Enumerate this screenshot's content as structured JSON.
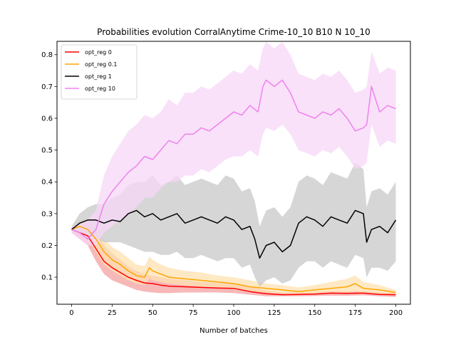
{
  "chart_data": {
    "type": "line",
    "title": "Probabilities evolution CorralAnytime Crime-10_10 B10 N 10_10",
    "xlabel": "Number of batches",
    "ylabel": "",
    "xlim": [
      -9,
      209
    ],
    "ylim": [
      0.015,
      0.842
    ],
    "xticks": [
      0,
      25,
      50,
      75,
      100,
      125,
      150,
      175,
      200
    ],
    "yticks": [
      0.1,
      0.2,
      0.3,
      0.4,
      0.5,
      0.6,
      0.7,
      0.8
    ],
    "grid": false,
    "legend_position": "top-left",
    "series": [
      {
        "name": "opt_reg 0",
        "color": "#ff0000",
        "band_color": "#f4a0a0",
        "x": [
          0,
          5,
          10,
          15,
          20,
          25,
          30,
          35,
          40,
          45,
          50,
          55,
          60,
          70,
          80,
          90,
          100,
          110,
          120,
          130,
          140,
          150,
          160,
          170,
          180,
          190,
          200
        ],
        "y": [
          0.25,
          0.24,
          0.23,
          0.19,
          0.15,
          0.13,
          0.115,
          0.1,
          0.09,
          0.082,
          0.08,
          0.075,
          0.072,
          0.07,
          0.068,
          0.066,
          0.065,
          0.055,
          0.048,
          0.045,
          0.046,
          0.047,
          0.05,
          0.049,
          0.05,
          0.046,
          0.045
        ],
        "lower": [
          0.24,
          0.22,
          0.2,
          0.15,
          0.11,
          0.09,
          0.08,
          0.07,
          0.06,
          0.055,
          0.052,
          0.05,
          0.05,
          0.052,
          0.052,
          0.052,
          0.05,
          0.045,
          0.04,
          0.04,
          0.04,
          0.041,
          0.042,
          0.042,
          0.043,
          0.04,
          0.038
        ],
        "upper": [
          0.26,
          0.26,
          0.27,
          0.24,
          0.2,
          0.175,
          0.155,
          0.135,
          0.12,
          0.11,
          0.105,
          0.1,
          0.095,
          0.09,
          0.085,
          0.082,
          0.08,
          0.07,
          0.058,
          0.052,
          0.052,
          0.053,
          0.057,
          0.056,
          0.057,
          0.052,
          0.05
        ]
      },
      {
        "name": "opt_reg 0.1",
        "color": "#ffa500",
        "band_color": "#fde1b0",
        "x": [
          0,
          5,
          10,
          15,
          20,
          25,
          30,
          35,
          40,
          45,
          48,
          50,
          55,
          60,
          70,
          80,
          90,
          100,
          110,
          120,
          130,
          140,
          150,
          160,
          170,
          175,
          180,
          190,
          200
        ],
        "y": [
          0.25,
          0.26,
          0.25,
          0.22,
          0.18,
          0.155,
          0.14,
          0.12,
          0.105,
          0.1,
          0.13,
          0.12,
          0.11,
          0.1,
          0.095,
          0.09,
          0.085,
          0.08,
          0.07,
          0.065,
          0.06,
          0.055,
          0.06,
          0.065,
          0.07,
          0.08,
          0.065,
          0.06,
          0.052
        ],
        "lower": [
          0.24,
          0.24,
          0.22,
          0.18,
          0.14,
          0.12,
          0.105,
          0.09,
          0.08,
          0.075,
          0.095,
          0.09,
          0.085,
          0.08,
          0.075,
          0.07,
          0.068,
          0.062,
          0.055,
          0.052,
          0.048,
          0.045,
          0.048,
          0.05,
          0.052,
          0.055,
          0.05,
          0.048,
          0.045
        ],
        "upper": [
          0.26,
          0.28,
          0.28,
          0.26,
          0.22,
          0.195,
          0.18,
          0.16,
          0.14,
          0.135,
          0.165,
          0.155,
          0.14,
          0.13,
          0.12,
          0.115,
          0.105,
          0.1,
          0.09,
          0.08,
          0.075,
          0.068,
          0.075,
          0.085,
          0.095,
          0.105,
          0.085,
          0.075,
          0.06
        ]
      },
      {
        "name": "opt_reg 1",
        "color": "#000000",
        "band_color": "#c8c8c8",
        "x": [
          0,
          5,
          10,
          15,
          20,
          25,
          30,
          35,
          40,
          45,
          50,
          55,
          60,
          65,
          70,
          75,
          80,
          85,
          90,
          95,
          100,
          105,
          110,
          113,
          116,
          120,
          125,
          130,
          135,
          140,
          145,
          150,
          155,
          160,
          165,
          170,
          175,
          180,
          182,
          185,
          190,
          195,
          200
        ],
        "y": [
          0.25,
          0.27,
          0.28,
          0.28,
          0.27,
          0.28,
          0.275,
          0.3,
          0.31,
          0.29,
          0.3,
          0.28,
          0.29,
          0.3,
          0.27,
          0.28,
          0.29,
          0.28,
          0.27,
          0.29,
          0.28,
          0.25,
          0.26,
          0.22,
          0.16,
          0.2,
          0.21,
          0.18,
          0.2,
          0.27,
          0.29,
          0.28,
          0.26,
          0.29,
          0.28,
          0.27,
          0.31,
          0.3,
          0.21,
          0.25,
          0.26,
          0.24,
          0.28
        ],
        "lower": [
          0.24,
          0.24,
          0.23,
          0.22,
          0.21,
          0.21,
          0.21,
          0.2,
          0.19,
          0.18,
          0.18,
          0.17,
          0.17,
          0.18,
          0.16,
          0.16,
          0.17,
          0.16,
          0.15,
          0.16,
          0.16,
          0.13,
          0.14,
          0.1,
          0.07,
          0.09,
          0.1,
          0.08,
          0.09,
          0.13,
          0.15,
          0.15,
          0.13,
          0.15,
          0.14,
          0.13,
          0.17,
          0.16,
          0.1,
          0.13,
          0.13,
          0.12,
          0.15
        ],
        "upper": [
          0.26,
          0.3,
          0.32,
          0.33,
          0.33,
          0.35,
          0.36,
          0.39,
          0.4,
          0.4,
          0.42,
          0.39,
          0.4,
          0.42,
          0.39,
          0.4,
          0.41,
          0.4,
          0.39,
          0.42,
          0.41,
          0.37,
          0.38,
          0.34,
          0.26,
          0.31,
          0.32,
          0.29,
          0.32,
          0.4,
          0.42,
          0.41,
          0.39,
          0.43,
          0.42,
          0.41,
          0.46,
          0.44,
          0.32,
          0.37,
          0.38,
          0.36,
          0.4
        ]
      },
      {
        "name": "opt_reg 10",
        "color": "#ee82ee",
        "band_color": "#f7d7f7",
        "x": [
          0,
          5,
          10,
          15,
          20,
          25,
          30,
          35,
          40,
          45,
          50,
          55,
          60,
          65,
          70,
          75,
          80,
          85,
          90,
          95,
          100,
          105,
          110,
          115,
          118,
          120,
          125,
          130,
          135,
          140,
          145,
          150,
          155,
          160,
          165,
          170,
          175,
          180,
          182,
          185,
          190,
          195,
          200
        ],
        "y": [
          0.25,
          0.24,
          0.22,
          0.25,
          0.33,
          0.37,
          0.4,
          0.43,
          0.45,
          0.48,
          0.47,
          0.5,
          0.53,
          0.52,
          0.55,
          0.55,
          0.57,
          0.56,
          0.58,
          0.6,
          0.62,
          0.61,
          0.64,
          0.62,
          0.7,
          0.72,
          0.7,
          0.72,
          0.68,
          0.62,
          0.61,
          0.6,
          0.62,
          0.61,
          0.63,
          0.6,
          0.56,
          0.57,
          0.58,
          0.7,
          0.62,
          0.64,
          0.63
        ],
        "lower": [
          0.24,
          0.22,
          0.2,
          0.2,
          0.24,
          0.26,
          0.28,
          0.3,
          0.32,
          0.35,
          0.35,
          0.38,
          0.4,
          0.4,
          0.42,
          0.42,
          0.44,
          0.43,
          0.45,
          0.47,
          0.48,
          0.48,
          0.5,
          0.48,
          0.55,
          0.57,
          0.56,
          0.58,
          0.55,
          0.5,
          0.49,
          0.48,
          0.5,
          0.49,
          0.51,
          0.48,
          0.44,
          0.45,
          0.46,
          0.58,
          0.51,
          0.53,
          0.52
        ],
        "upper": [
          0.26,
          0.27,
          0.28,
          0.31,
          0.42,
          0.48,
          0.52,
          0.56,
          0.58,
          0.61,
          0.6,
          0.62,
          0.66,
          0.64,
          0.68,
          0.68,
          0.7,
          0.69,
          0.71,
          0.73,
          0.75,
          0.74,
          0.77,
          0.75,
          0.82,
          0.84,
          0.82,
          0.84,
          0.8,
          0.74,
          0.73,
          0.72,
          0.74,
          0.73,
          0.75,
          0.72,
          0.68,
          0.69,
          0.7,
          0.81,
          0.74,
          0.76,
          0.75
        ]
      }
    ]
  }
}
